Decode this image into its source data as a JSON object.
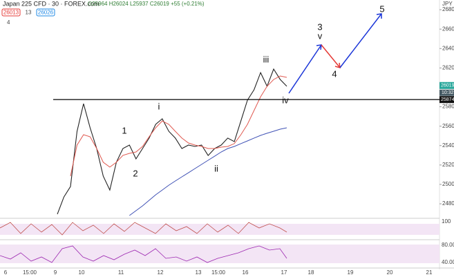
{
  "chart_data": {
    "type": "line",
    "title": "Japan 225 CFD · 30 · FOREX.com",
    "ohlc_text": "O25964 H26024 L25937 C26019 +55 (+0.21%)",
    "bid": "26013",
    "spread": "13",
    "ask": "26026",
    "collapsed": "4",
    "currency": "JPY",
    "ylim": [
      24658,
      26900
    ],
    "yticks": [
      24800,
      25000,
      25200,
      25400,
      25600,
      25800,
      26200,
      26400,
      26600,
      26800
    ],
    "x_labels": [
      "6",
      "15:00",
      "9",
      "10",
      "11",
      "12",
      "13",
      "15:00",
      "16",
      "17",
      "18",
      "19",
      "20",
      "21"
    ],
    "series": [
      {
        "color": "#222222",
        "values": [
          24693,
          24871,
          24978,
          25547,
          25832,
          25583,
          25370,
          25085,
          24942,
          25228,
          25370,
          25405,
          25263,
          25370,
          25477,
          25619,
          25676,
          25547,
          25477,
          25370,
          25405,
          25391,
          25405,
          25298,
          25370,
          25405,
          25477,
          25441,
          25654,
          25868,
          25975,
          26152,
          26011,
          26188,
          26081,
          26011
        ]
      },
      {
        "color": "#e0584f",
        "values": [
          null,
          null,
          25085,
          25405,
          25512,
          25491,
          25370,
          25228,
          25178,
          25228,
          25299,
          25320,
          25334,
          25391,
          25491,
          25583,
          25654,
          25619,
          25547,
          25477,
          25427,
          25405,
          25391,
          25370,
          25370,
          25384,
          25391,
          25420,
          25512,
          25619,
          25761,
          25903,
          26011,
          26081,
          26117,
          26103
        ]
      },
      {
        "color": "#3f51b5",
        "values": [
          null,
          null,
          null,
          null,
          null,
          null,
          null,
          null,
          null,
          null,
          null,
          24679,
          24729,
          24779,
          24836,
          24893,
          24942,
          24992,
          25035,
          25078,
          25120,
          25163,
          25206,
          25249,
          25291,
          25334,
          25370,
          25391,
          25420,
          25448,
          25477,
          25505,
          25527,
          25548,
          25569,
          25583
        ]
      }
    ],
    "level": {
      "value": 25874,
      "label": "25874"
    },
    "last_price": {
      "value": 26019,
      "label": "26019"
    },
    "countdown": "10:32",
    "annotations": [
      "1",
      "2",
      "i",
      "ii",
      "iii",
      "iv",
      "3",
      "v",
      "4",
      "5"
    ],
    "osc_labels": [
      "100",
      "80.00",
      "40.00"
    ]
  }
}
